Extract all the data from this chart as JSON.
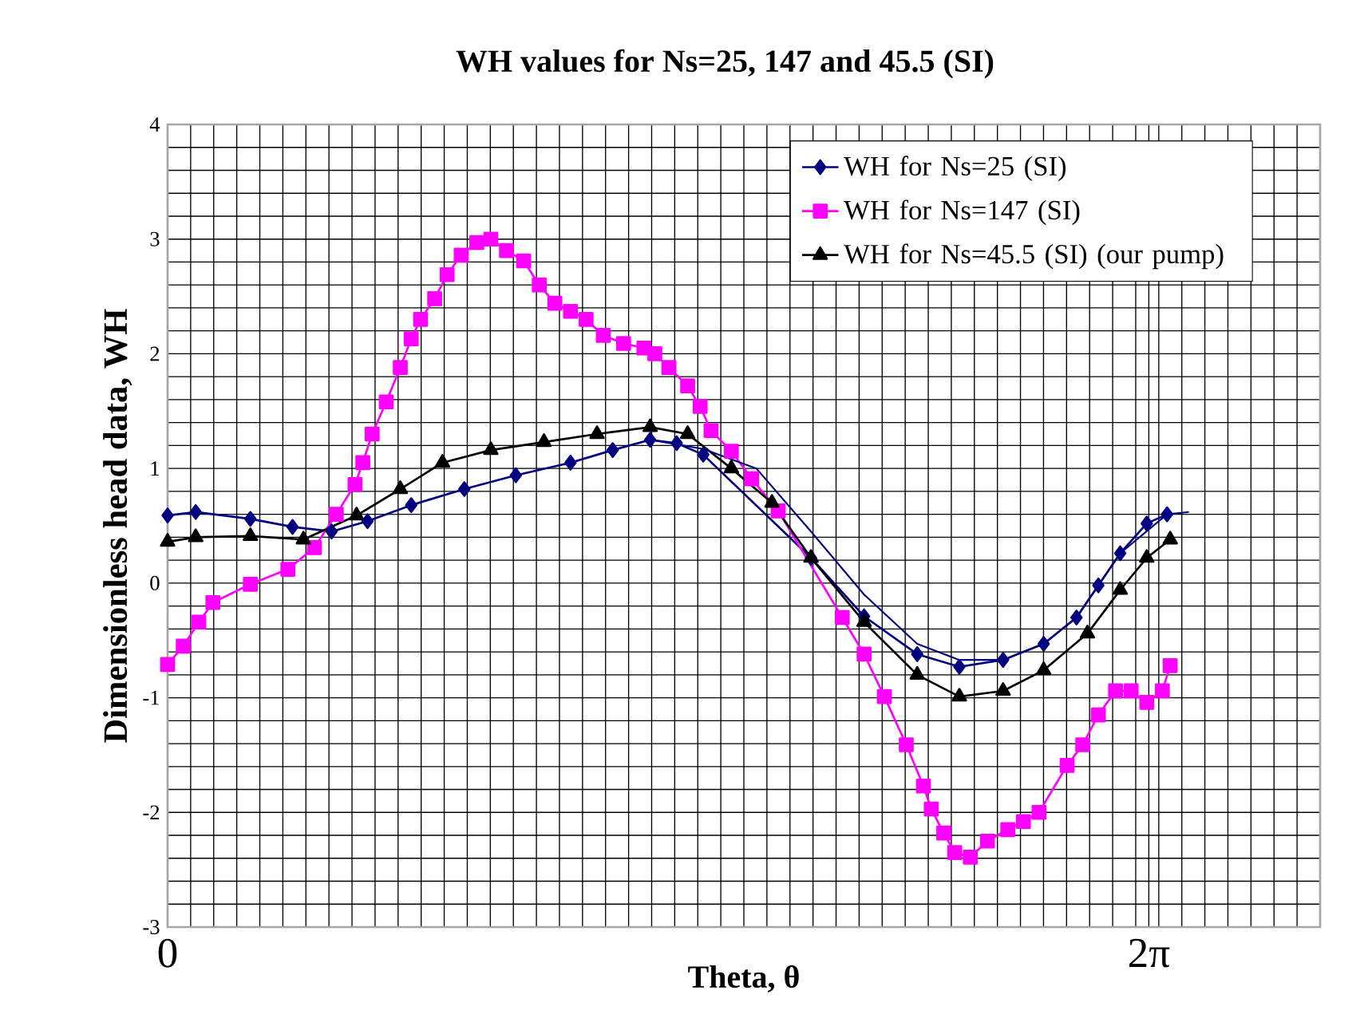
{
  "chart_data": {
    "type": "line",
    "title": "WH values for Ns=25, 147 and 45.5 (SI)",
    "xlabel": "Theta, θ",
    "ylabel": "Dimensionless head data, WH",
    "xlim": [
      0,
      7.38
    ],
    "ylim": [
      -3,
      4
    ],
    "xticks": [
      {
        "value": 0,
        "label": "0"
      },
      {
        "value": 6.2832,
        "label": "2π"
      }
    ],
    "yticks": [
      -3,
      -2,
      -1,
      0,
      1,
      2,
      3,
      4
    ],
    "grid": true,
    "legend": "top right",
    "line_style": "solid",
    "series": [
      {
        "name": "WH for Ns=25 (SI)",
        "color": "#000080",
        "marker": "diamond",
        "x": [
          0,
          0.18,
          0.53,
          0.8,
          1.05,
          1.28,
          1.56,
          1.9,
          2.23,
          2.58,
          2.85,
          3.09,
          3.26,
          3.43,
          3.77,
          4.12,
          4.46,
          4.8,
          5.07,
          5.35,
          5.61,
          5.82,
          5.96,
          6.1,
          6.27,
          6.4
        ],
        "values": [
          0.59,
          0.62,
          0.56,
          0.49,
          0.45,
          0.54,
          0.68,
          0.82,
          0.94,
          1.05,
          1.16,
          1.25,
          1.22,
          1.12,
          null,
          0.22,
          -0.29,
          -0.62,
          -0.73,
          -0.67,
          -0.53,
          -0.3,
          -0.02,
          0.26,
          0.52,
          0.6
        ]
      },
      {
        "name": "WH for Ns=147 (SI)",
        "color": "#ff00ff",
        "marker": "square",
        "x": [
          0,
          0.1,
          0.2,
          0.29,
          0.53,
          0.77,
          0.94,
          1.08,
          1.2,
          1.25,
          1.31,
          1.4,
          1.49,
          1.56,
          1.62,
          1.71,
          1.79,
          1.88,
          1.98,
          2.07,
          2.17,
          2.28,
          2.38,
          2.48,
          2.58,
          2.68,
          2.79,
          2.92,
          3.05,
          3.12,
          3.21,
          3.33,
          3.41,
          3.48,
          3.61,
          3.74,
          3.91,
          4.12,
          4.32,
          4.46,
          4.59,
          4.73,
          4.84,
          4.89,
          4.97,
          5.04,
          5.14,
          5.25,
          5.38,
          5.48,
          5.58,
          5.76,
          5.86,
          5.96,
          6.07,
          6.17,
          6.27,
          6.37,
          6.42
        ],
        "values": [
          -0.71,
          -0.55,
          -0.34,
          -0.17,
          -0.01,
          0.12,
          0.31,
          0.6,
          0.86,
          1.05,
          1.3,
          1.58,
          1.88,
          2.13,
          2.3,
          2.48,
          2.69,
          2.86,
          2.97,
          3.0,
          2.9,
          2.81,
          2.6,
          2.44,
          2.37,
          2.3,
          2.16,
          2.09,
          2.05,
          2.0,
          1.88,
          1.72,
          1.54,
          1.33,
          1.15,
          0.91,
          0.63,
          null,
          -0.3,
          -0.62,
          -0.99,
          -1.41,
          -1.77,
          -1.97,
          -2.18,
          -2.35,
          -2.39,
          -2.25,
          -2.15,
          -2.08,
          -2.0,
          -1.59,
          -1.41,
          -1.15,
          -0.94,
          -0.94,
          -1.04,
          -0.94,
          -0.72
        ]
      },
      {
        "name": "WH for Ns=45.5 (SI) (our pump)",
        "color": "#000000",
        "marker": "triangle",
        "x": [
          0,
          0.18,
          0.53,
          0.87,
          1.21,
          1.49,
          1.76,
          2.07,
          2.41,
          2.75,
          3.09,
          3.33,
          3.61,
          3.87,
          4.12,
          4.46,
          4.8,
          5.07,
          5.35,
          5.61,
          5.89,
          6.1,
          6.27,
          6.42
        ],
        "values": [
          0.36,
          0.4,
          0.41,
          0.38,
          0.59,
          0.82,
          1.05,
          1.16,
          1.23,
          1.3,
          1.36,
          1.3,
          1.0,
          0.7,
          0.22,
          -0.34,
          -0.8,
          -0.99,
          -0.94,
          -0.76,
          -0.44,
          -0.06,
          0.22,
          0.38
        ]
      },
      {
        "color": "#000080",
        "marker": "none",
        "x": [
          3.09,
          3.43,
          3.77,
          4.12,
          4.46,
          4.8,
          5.07,
          5.35,
          5.61,
          5.82,
          6.1,
          6.4,
          6.54
        ],
        "values": [
          1.25,
          1.17,
          1.0,
          0.45,
          -0.1,
          -0.53,
          -0.67,
          -0.67,
          -0.53,
          -0.3,
          0.26,
          0.6,
          0.62
        ]
      }
    ]
  }
}
